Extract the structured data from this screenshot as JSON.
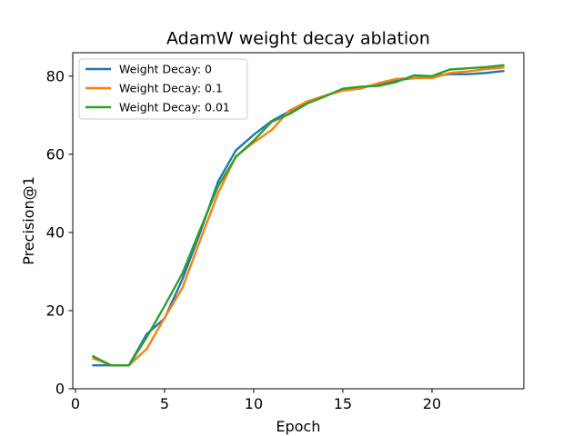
{
  "chart_data": {
    "type": "line",
    "title": "AdamW weight decay ablation",
    "xlabel": "Epoch",
    "ylabel": "Precision@1",
    "xlim": [
      -0.15,
      25.15
    ],
    "ylim": [
      0,
      86
    ],
    "xticks": [
      0,
      5,
      10,
      15,
      20
    ],
    "yticks": [
      0,
      20,
      40,
      60,
      80
    ],
    "grid": false,
    "legend_position": "upper-left",
    "x": [
      1,
      2,
      3,
      4,
      5,
      6,
      7,
      8,
      9,
      10,
      11,
      12,
      13,
      14,
      15,
      16,
      17,
      18,
      19,
      20,
      21,
      22,
      23,
      24
    ],
    "series": [
      {
        "name": "Weight Decay: 0",
        "color": "#1f77b4",
        "values": [
          6.0,
          6.0,
          6.0,
          14.0,
          18.0,
          28.0,
          40.0,
          53.0,
          61.0,
          65.0,
          68.5,
          71.0,
          73.5,
          75.0,
          76.5,
          77.0,
          78.0,
          79.0,
          79.5,
          80.0,
          80.5,
          80.5,
          80.8,
          81.3
        ]
      },
      {
        "name": "Weight Decay: 0.1",
        "color": "#ff7f0e",
        "values": [
          7.8,
          6.0,
          6.0,
          10.2,
          18.2,
          25.8,
          38.0,
          50.0,
          59.5,
          63.0,
          66.2,
          71.2,
          73.5,
          75.0,
          76.3,
          76.8,
          78.2,
          79.3,
          79.5,
          79.5,
          80.8,
          81.2,
          81.8,
          82.2
        ]
      },
      {
        "name": "Weight Decay: 0.01",
        "color": "#2ca02c",
        "values": [
          8.3,
          6.0,
          6.0,
          13.2,
          21.2,
          29.5,
          40.8,
          51.8,
          59.3,
          63.5,
          68.3,
          70.3,
          73.0,
          74.8,
          76.8,
          77.3,
          77.5,
          78.5,
          80.2,
          80.0,
          81.7,
          82.0,
          82.3,
          82.8
        ]
      }
    ]
  }
}
